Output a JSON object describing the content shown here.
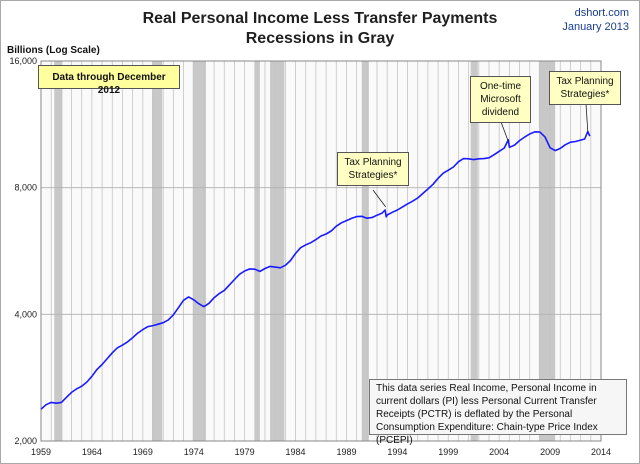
{
  "header": {
    "title_line1": "Real Personal Income Less Transfer Payments",
    "title_line2": "Recessions in Gray",
    "source": "dshort.com",
    "date": "January 2013"
  },
  "chart_data": {
    "type": "line",
    "title": "Real Personal Income Less Transfer Payments",
    "subtitle": "Recessions in Gray",
    "xlabel": "",
    "ylabel": "Billions (Log Scale)",
    "y_scale": "log",
    "xlim": [
      1959,
      2014
    ],
    "ylim": [
      2000,
      16000
    ],
    "x_ticks": [
      "1959",
      "1964",
      "1969",
      "1974",
      "1979",
      "1984",
      "1989",
      "1994",
      "1999",
      "2004",
      "2009",
      "2014"
    ],
    "y_ticks": [
      "2,000",
      "4,000",
      "8,000",
      "16,000"
    ],
    "grid": true,
    "line_color": "#1a1aff",
    "recession_color": "#c8c8c8",
    "recessions": [
      [
        1960.3,
        1961.1
      ],
      [
        1969.9,
        1970.9
      ],
      [
        1973.9,
        1975.2
      ],
      [
        1980.0,
        1980.5
      ],
      [
        1981.5,
        1982.9
      ],
      [
        1990.5,
        1991.2
      ],
      [
        2001.2,
        2001.9
      ],
      [
        2007.9,
        2009.5
      ]
    ],
    "series": [
      {
        "points": [
          [
            1959.0,
            2380
          ],
          [
            1959.5,
            2440
          ],
          [
            1960.0,
            2470
          ],
          [
            1960.5,
            2460
          ],
          [
            1961.0,
            2470
          ],
          [
            1961.5,
            2540
          ],
          [
            1962.0,
            2610
          ],
          [
            1962.5,
            2660
          ],
          [
            1963.0,
            2700
          ],
          [
            1963.5,
            2760
          ],
          [
            1964.0,
            2850
          ],
          [
            1964.5,
            2960
          ],
          [
            1965.0,
            3040
          ],
          [
            1965.5,
            3140
          ],
          [
            1966.0,
            3240
          ],
          [
            1966.5,
            3330
          ],
          [
            1967.0,
            3380
          ],
          [
            1967.5,
            3440
          ],
          [
            1968.0,
            3520
          ],
          [
            1968.5,
            3610
          ],
          [
            1969.0,
            3680
          ],
          [
            1969.5,
            3740
          ],
          [
            1970.0,
            3760
          ],
          [
            1970.5,
            3790
          ],
          [
            1971.0,
            3820
          ],
          [
            1971.5,
            3880
          ],
          [
            1972.0,
            3990
          ],
          [
            1972.5,
            4150
          ],
          [
            1973.0,
            4320
          ],
          [
            1973.5,
            4400
          ],
          [
            1974.0,
            4330
          ],
          [
            1974.5,
            4240
          ],
          [
            1975.0,
            4170
          ],
          [
            1975.5,
            4250
          ],
          [
            1976.0,
            4380
          ],
          [
            1976.5,
            4480
          ],
          [
            1977.0,
            4560
          ],
          [
            1977.5,
            4700
          ],
          [
            1978.0,
            4840
          ],
          [
            1978.5,
            4980
          ],
          [
            1979.0,
            5070
          ],
          [
            1979.5,
            5130
          ],
          [
            1980.0,
            5120
          ],
          [
            1980.5,
            5060
          ],
          [
            1981.0,
            5140
          ],
          [
            1981.5,
            5200
          ],
          [
            1982.0,
            5180
          ],
          [
            1982.5,
            5160
          ],
          [
            1983.0,
            5230
          ],
          [
            1983.5,
            5370
          ],
          [
            1984.0,
            5580
          ],
          [
            1984.5,
            5760
          ],
          [
            1985.0,
            5850
          ],
          [
            1985.5,
            5920
          ],
          [
            1986.0,
            6020
          ],
          [
            1986.5,
            6140
          ],
          [
            1987.0,
            6210
          ],
          [
            1987.5,
            6310
          ],
          [
            1988.0,
            6480
          ],
          [
            1988.5,
            6600
          ],
          [
            1989.0,
            6680
          ],
          [
            1989.5,
            6760
          ],
          [
            1990.0,
            6830
          ],
          [
            1990.5,
            6840
          ],
          [
            1991.0,
            6770
          ],
          [
            1991.5,
            6790
          ],
          [
            1992.0,
            6880
          ],
          [
            1992.5,
            6960
          ],
          [
            1992.8,
            7080
          ],
          [
            1992.9,
            6820
          ],
          [
            1993.0,
            6890
          ],
          [
            1993.5,
            6990
          ],
          [
            1994.0,
            7080
          ],
          [
            1994.5,
            7200
          ],
          [
            1995.0,
            7320
          ],
          [
            1995.5,
            7430
          ],
          [
            1996.0,
            7560
          ],
          [
            1996.5,
            7750
          ],
          [
            1997.0,
            7940
          ],
          [
            1997.5,
            8150
          ],
          [
            1998.0,
            8420
          ],
          [
            1998.5,
            8660
          ],
          [
            1999.0,
            8800
          ],
          [
            1999.5,
            8960
          ],
          [
            2000.0,
            9220
          ],
          [
            2000.5,
            9380
          ],
          [
            2001.0,
            9370
          ],
          [
            2001.5,
            9330
          ],
          [
            2002.0,
            9370
          ],
          [
            2002.5,
            9380
          ],
          [
            2003.0,
            9420
          ],
          [
            2003.5,
            9580
          ],
          [
            2004.0,
            9760
          ],
          [
            2004.5,
            9940
          ],
          [
            2004.9,
            10400
          ],
          [
            2005.0,
            9980
          ],
          [
            2005.5,
            10100
          ],
          [
            2006.0,
            10350
          ],
          [
            2006.5,
            10550
          ],
          [
            2007.0,
            10730
          ],
          [
            2007.5,
            10860
          ],
          [
            2008.0,
            10840
          ],
          [
            2008.5,
            10560
          ],
          [
            2009.0,
            9950
          ],
          [
            2009.5,
            9800
          ],
          [
            2010.0,
            9920
          ],
          [
            2010.5,
            10120
          ],
          [
            2011.0,
            10260
          ],
          [
            2011.5,
            10300
          ],
          [
            2012.0,
            10380
          ],
          [
            2012.4,
            10440
          ],
          [
            2012.7,
            10880
          ],
          [
            2012.9,
            10600
          ]
        ]
      }
    ],
    "annotations": [
      {
        "key": "data_through",
        "text": "Data through December 2012"
      },
      {
        "key": "tax1",
        "text": "Tax Planning Strategies*",
        "x": 1992.85
      },
      {
        "key": "microsoft",
        "text": "One-time Microsoft dividend",
        "x": 2004.9
      },
      {
        "key": "tax2",
        "text": "Tax Planning Strategies*",
        "x": 2012.7
      }
    ],
    "description": "This data series  Real Income, Personal Income in current dollars  (PI) less Personal Current Transfer Receipts (PCTR) is deflated by the Personal Consumption Expenditure: Chain-type Price Index (PCEPI)"
  },
  "notes": {
    "data_through": "Data through December 2012",
    "tax1_line1": "Tax Planning",
    "tax1_line2": "Strategies*",
    "ms_line1": "One-time",
    "ms_line2": "Microsoft",
    "ms_line3": "dividend",
    "tax2_line1": "Tax Planning",
    "tax2_line2": "Strategies*",
    "description": "This data series  Real Income, Personal Income in current dollars  (PI) less Personal Current Transfer Receipts (PCTR) is deflated by the Personal Consumption Expenditure: Chain-type Price Index (PCEPI)"
  }
}
